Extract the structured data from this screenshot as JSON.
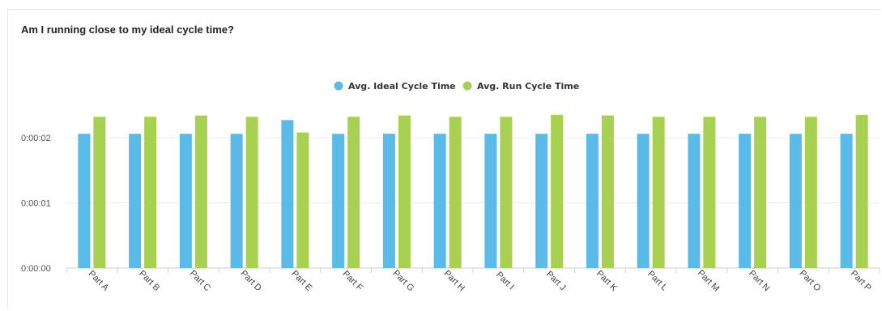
{
  "chart_data": {
    "type": "bar",
    "title": "Am I running close to my ideal cycle time?",
    "xlabel": "",
    "ylabel": "",
    "y_ticks": [
      "0:00:00",
      "0:00:01",
      "0:00:02"
    ],
    "ylim_seconds": [
      0,
      2.6
    ],
    "categories": [
      "Part A",
      "Part B",
      "Part C",
      "Part D",
      "Part E",
      "Part F",
      "Part G",
      "Part H",
      "Part I",
      "Part J",
      "Part K",
      "Part L",
      "Part M",
      "Part N",
      "Part O",
      "Part P"
    ],
    "series": [
      {
        "name": "Avg. Ideal Cycle Time",
        "color": "#5bbbe8",
        "values_seconds": [
          2.06,
          2.06,
          2.06,
          2.06,
          2.27,
          2.06,
          2.06,
          2.06,
          2.06,
          2.06,
          2.06,
          2.06,
          2.06,
          2.06,
          2.06,
          2.06
        ]
      },
      {
        "name": "Avg. Run Cycle Time",
        "color": "#a8d152",
        "values_seconds": [
          2.32,
          2.32,
          2.34,
          2.32,
          2.08,
          2.32,
          2.34,
          2.32,
          2.32,
          2.35,
          2.34,
          2.32,
          2.32,
          2.32,
          2.32,
          2.35
        ]
      }
    ],
    "legend_position": "top-center",
    "grid": true
  }
}
